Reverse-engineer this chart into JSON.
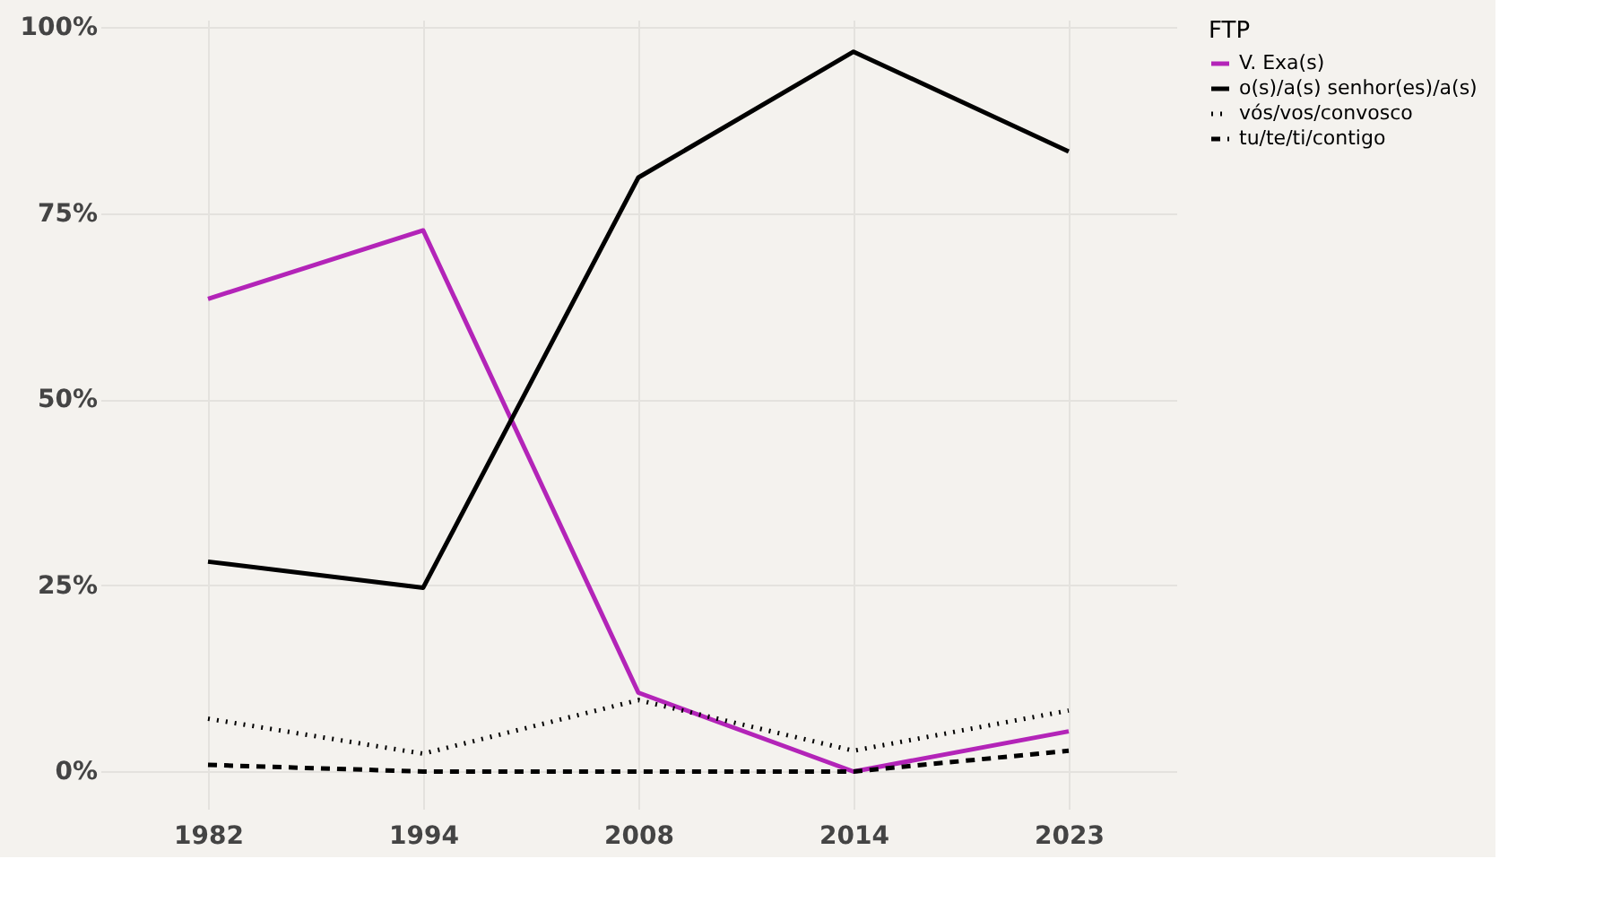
{
  "chart_data": {
    "type": "line",
    "categories": [
      "1982",
      "1994",
      "2008",
      "2014",
      "2023"
    ],
    "series": [
      {
        "name": "V. Exa(s)",
        "color": "#b324b8",
        "line_style": "solid",
        "values": [
          63.5,
          72.7,
          10.6,
          0,
          5.4
        ]
      },
      {
        "name": "o(s)/a(s) senhor(es)/a(s)",
        "color": "#000000",
        "line_style": "solid",
        "values": [
          28.2,
          24.7,
          79.8,
          96.7,
          83.3
        ]
      },
      {
        "name": "vós/vos/convosco",
        "color": "#000000",
        "line_style": "dotted",
        "values": [
          7.1,
          2.4,
          9.6,
          2.8,
          8.2
        ]
      },
      {
        "name": "tu/te/ti/contigo",
        "color": "#000000",
        "line_style": "dashed",
        "values": [
          0.9,
          0,
          0,
          0,
          2.8
        ]
      }
    ],
    "ylim": [
      -5,
      101
    ],
    "yticks": [
      {
        "value": 0,
        "label": "0%"
      },
      {
        "value": 25,
        "label": "25%"
      },
      {
        "value": 50,
        "label": "50%"
      },
      {
        "value": 75,
        "label": "75%"
      },
      {
        "value": 100,
        "label": "100%"
      }
    ],
    "legend_title": "FTP",
    "legend": "right",
    "grid": true,
    "marker": "none"
  }
}
